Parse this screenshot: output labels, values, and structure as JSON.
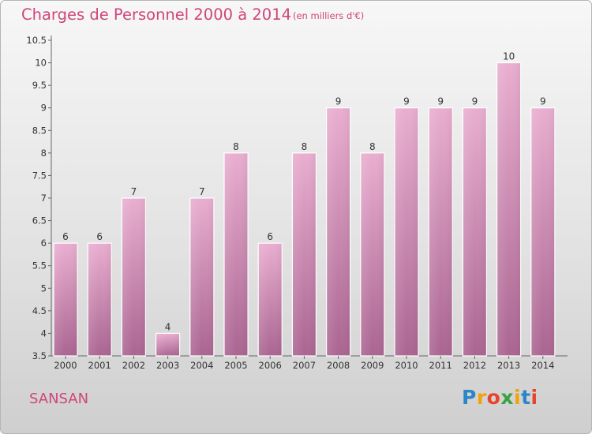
{
  "header": {
    "title": "Charges de Personnel 2000 à 2014",
    "subtitle": "(en milliers d'€)"
  },
  "footer": {
    "commune": "SANSAN",
    "brand": "Proxiti"
  },
  "colors": {
    "accent": "#d0457a",
    "bar_top": "#e9aed0",
    "bar_bottom": "#aa6591"
  },
  "chart_data": {
    "type": "bar",
    "title": "Charges de Personnel 2000 à 2014",
    "subtitle": "(en milliers d'€)",
    "categories": [
      "2000",
      "2001",
      "2002",
      "2003",
      "2004",
      "2005",
      "2006",
      "2007",
      "2008",
      "2009",
      "2010",
      "2011",
      "2012",
      "2013",
      "2014"
    ],
    "values": [
      6,
      6,
      7,
      4,
      7,
      8,
      6,
      8,
      9,
      8,
      9,
      9,
      9,
      10,
      9
    ],
    "value_labels": [
      "6",
      "6",
      "7",
      "4",
      "7",
      "8",
      "6",
      "8",
      "9",
      "8",
      "9",
      "9",
      "9",
      "10",
      "9"
    ],
    "ylim": [
      3.5,
      10.5
    ],
    "yticks": [
      "3.5",
      "4",
      "4.5",
      "5",
      "5.5",
      "6",
      "6.5",
      "7",
      "7.5",
      "8",
      "8.5",
      "9",
      "9.5",
      "10",
      "10.5"
    ],
    "grid": false,
    "legend": "none"
  }
}
